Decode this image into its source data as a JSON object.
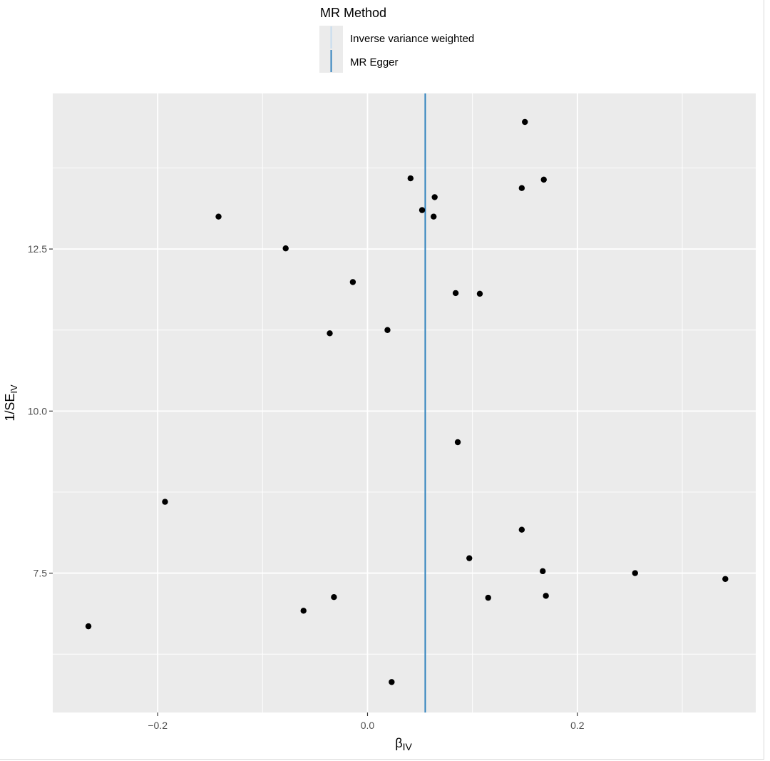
{
  "chart_data": {
    "type": "scatter",
    "title": "",
    "xlabel": "β",
    "xlabel_sub": "IV",
    "ylabel_prefix": "1/SE",
    "ylabel_sub": "IV",
    "xlim": [
      -0.3,
      0.37
    ],
    "ylim": [
      5.35,
      14.9
    ],
    "x_ticks": [
      -0.2,
      0.0,
      0.2
    ],
    "x_tick_labels": [
      "−0.2",
      "0.0",
      "0.2"
    ],
    "y_ticks": [
      7.5,
      10.0,
      12.5
    ],
    "y_tick_labels": [
      "7.5",
      "10.0",
      "12.5"
    ],
    "grid": true,
    "legend": {
      "title": "MR Method",
      "placement": "top",
      "entries": [
        {
          "name": "Inverse variance weighted",
          "color": "#c6dbef"
        },
        {
          "name": "MR Egger",
          "color": "#3182bd"
        }
      ]
    },
    "lines": [
      {
        "method": "Inverse variance weighted",
        "x": 0.055,
        "color": "#c6dbef"
      },
      {
        "method": "MR Egger",
        "x": 0.055,
        "color": "#3182bd"
      }
    ],
    "points": [
      {
        "x": -0.266,
        "y": 6.68
      },
      {
        "x": -0.193,
        "y": 8.6
      },
      {
        "x": -0.142,
        "y": 13.0
      },
      {
        "x": -0.078,
        "y": 12.51
      },
      {
        "x": -0.061,
        "y": 6.92
      },
      {
        "x": -0.036,
        "y": 11.2
      },
      {
        "x": -0.032,
        "y": 7.13
      },
      {
        "x": -0.014,
        "y": 11.99
      },
      {
        "x": 0.019,
        "y": 11.25
      },
      {
        "x": 0.023,
        "y": 5.82
      },
      {
        "x": 0.041,
        "y": 13.59
      },
      {
        "x": 0.052,
        "y": 13.1
      },
      {
        "x": 0.063,
        "y": 13.0
      },
      {
        "x": 0.064,
        "y": 13.3
      },
      {
        "x": 0.084,
        "y": 11.82
      },
      {
        "x": 0.086,
        "y": 9.52
      },
      {
        "x": 0.097,
        "y": 7.73
      },
      {
        "x": 0.107,
        "y": 11.81
      },
      {
        "x": 0.115,
        "y": 7.12
      },
      {
        "x": 0.147,
        "y": 8.17
      },
      {
        "x": 0.147,
        "y": 13.44
      },
      {
        "x": 0.15,
        "y": 14.46
      },
      {
        "x": 0.167,
        "y": 7.53
      },
      {
        "x": 0.168,
        "y": 13.57
      },
      {
        "x": 0.17,
        "y": 7.15
      },
      {
        "x": 0.255,
        "y": 7.5
      },
      {
        "x": 0.341,
        "y": 7.41
      }
    ],
    "colors": {
      "panel": "#ebebeb",
      "grid": "#ffffff",
      "point": "#000000",
      "axis_text": "#4d4d4d"
    }
  }
}
